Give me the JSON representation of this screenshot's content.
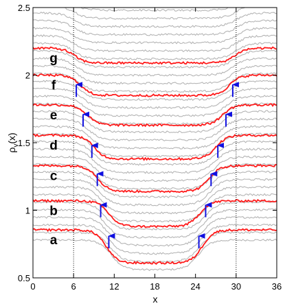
{
  "chart_data": {
    "type": "line",
    "title": "",
    "xlabel": "x",
    "ylabel": "ρ_v(x)",
    "ylabel_parts": {
      "main": "ρ",
      "sub": "v",
      "rest": "(x)"
    },
    "xlim": [
      0,
      36
    ],
    "ylim": [
      0.5,
      2.5
    ],
    "xticks": [
      0,
      6,
      12,
      18,
      24,
      30,
      36
    ],
    "xtick_labels": [
      "0",
      "6",
      "12",
      "18",
      "24",
      "30",
      "36"
    ],
    "yticks": [
      0.5,
      1,
      1.5,
      2,
      2.5
    ],
    "ytick_labels": [
      "0.5",
      "1",
      "1.5",
      "2",
      "2.5"
    ],
    "vlines": [
      6,
      30
    ],
    "colors": {
      "highlighted": "#ff1a1a",
      "background": "#b4b4b4",
      "arrow": "#1010e0",
      "axis": "#000000"
    },
    "grey_curves": {
      "count": 34,
      "offset_step": 0.056,
      "first_baseline": 0.78
    },
    "highlighted_series": [
      {
        "label": "a",
        "plateau": 0.855,
        "dip": 0.61,
        "left_edge": 10.8,
        "right_edge": 25.0
      },
      {
        "label": "b",
        "plateau": 1.07,
        "dip": 0.88,
        "left_edge": 11.2,
        "right_edge": 24.6
      },
      {
        "label": "c",
        "plateau": 1.33,
        "dip": 1.14,
        "left_edge": 9.6,
        "right_edge": 26.0
      },
      {
        "label": "d",
        "plateau": 1.555,
        "dip": 1.38,
        "left_edge": 9.0,
        "right_edge": 27.0
      },
      {
        "label": "e",
        "plateau": 1.78,
        "dip": 1.63,
        "left_edge": 8.0,
        "right_edge": 28.0
      },
      {
        "label": "f",
        "plateau": 2.0,
        "dip": 1.85,
        "left_edge": 7.0,
        "right_edge": 29.0
      },
      {
        "label": "g",
        "plateau": 2.2,
        "dip": 2.09,
        "left_edge": 6.1,
        "right_edge": 29.8
      }
    ],
    "arrows": [
      {
        "series": "a",
        "x": 11.2,
        "y": 0.81
      },
      {
        "series": "a",
        "x": 24.5,
        "y": 0.81
      },
      {
        "series": "b",
        "x": 10.0,
        "y": 1.04
      },
      {
        "series": "b",
        "x": 25.5,
        "y": 1.04
      },
      {
        "series": "c",
        "x": 9.5,
        "y": 1.27
      },
      {
        "series": "c",
        "x": 26.3,
        "y": 1.27
      },
      {
        "series": "d",
        "x": 8.7,
        "y": 1.48
      },
      {
        "series": "d",
        "x": 27.3,
        "y": 1.48
      },
      {
        "series": "e",
        "x": 7.4,
        "y": 1.71
      },
      {
        "series": "e",
        "x": 28.5,
        "y": 1.71
      },
      {
        "series": "f",
        "x": 6.4,
        "y": 1.93
      },
      {
        "series": "f",
        "x": 29.5,
        "y": 1.93
      }
    ]
  }
}
